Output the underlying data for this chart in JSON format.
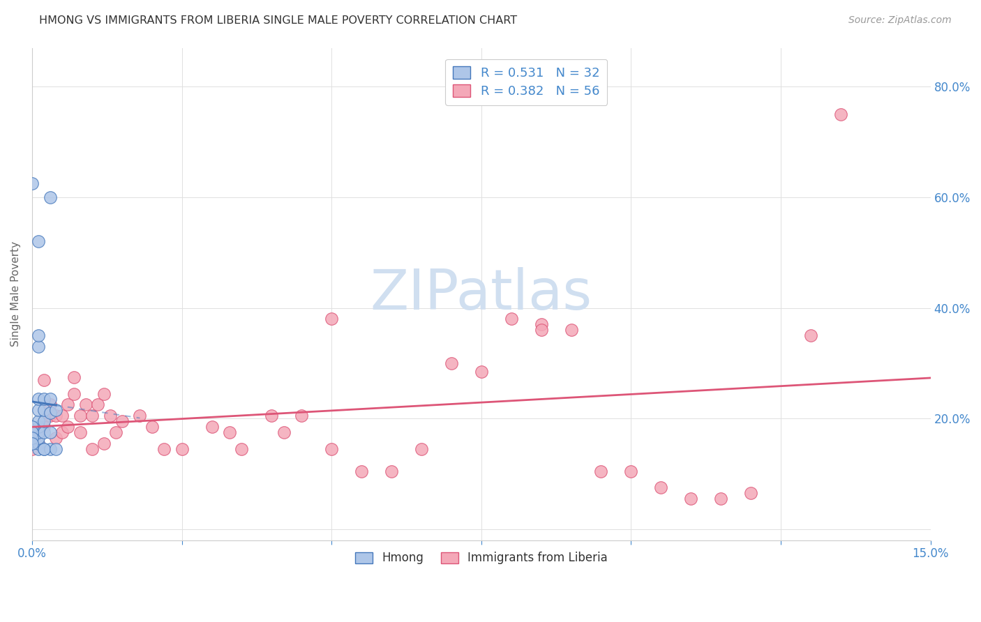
{
  "title": "HMONG VS IMMIGRANTS FROM LIBERIA SINGLE MALE POVERTY CORRELATION CHART",
  "source": "Source: ZipAtlas.com",
  "ylabel_label": "Single Male Poverty",
  "xlim": [
    0.0,
    0.15
  ],
  "ylim": [
    -0.02,
    0.87
  ],
  "legend_labels": [
    "Hmong",
    "Immigrants from Liberia"
  ],
  "hmong_R": "0.531",
  "hmong_N": "32",
  "liberia_R": "0.382",
  "liberia_N": "56",
  "hmong_color": "#aec6e8",
  "liberia_color": "#f4a8b8",
  "hmong_line_color": "#4477bb",
  "liberia_line_color": "#dd5577",
  "background_color": "#ffffff",
  "grid_color": "#e0e0e0",
  "title_color": "#333333",
  "axis_label_color": "#4488cc",
  "watermark_color": "#d0dff0",
  "hmong_x": [
    0.0,
    0.0,
    0.0,
    0.001,
    0.001,
    0.001,
    0.001,
    0.001,
    0.001,
    0.001,
    0.001,
    0.001,
    0.002,
    0.002,
    0.002,
    0.002,
    0.003,
    0.003,
    0.003,
    0.003,
    0.004,
    0.0,
    0.0,
    0.0,
    0.0,
    0.001,
    0.002,
    0.003,
    0.001,
    0.0,
    0.002,
    0.004
  ],
  "hmong_y": [
    0.155,
    0.165,
    0.175,
    0.145,
    0.155,
    0.165,
    0.175,
    0.185,
    0.195,
    0.215,
    0.235,
    0.33,
    0.175,
    0.195,
    0.215,
    0.235,
    0.175,
    0.21,
    0.235,
    0.6,
    0.215,
    0.185,
    0.175,
    0.165,
    0.155,
    0.52,
    0.145,
    0.145,
    0.35,
    0.625,
    0.145,
    0.145
  ],
  "liberia_x": [
    0.0,
    0.0,
    0.001,
    0.001,
    0.002,
    0.002,
    0.003,
    0.003,
    0.004,
    0.004,
    0.005,
    0.005,
    0.006,
    0.006,
    0.007,
    0.007,
    0.008,
    0.008,
    0.009,
    0.01,
    0.01,
    0.011,
    0.012,
    0.013,
    0.014,
    0.015,
    0.018,
    0.02,
    0.022,
    0.025,
    0.03,
    0.033,
    0.035,
    0.04,
    0.042,
    0.045,
    0.05,
    0.055,
    0.06,
    0.065,
    0.07,
    0.075,
    0.08,
    0.085,
    0.09,
    0.095,
    0.1,
    0.105,
    0.11,
    0.115,
    0.12,
    0.13,
    0.135,
    0.085,
    0.05,
    0.012
  ],
  "liberia_y": [
    0.145,
    0.165,
    0.155,
    0.175,
    0.185,
    0.27,
    0.205,
    0.225,
    0.165,
    0.205,
    0.175,
    0.205,
    0.185,
    0.225,
    0.245,
    0.275,
    0.175,
    0.205,
    0.225,
    0.145,
    0.205,
    0.225,
    0.245,
    0.205,
    0.175,
    0.195,
    0.205,
    0.185,
    0.145,
    0.145,
    0.185,
    0.175,
    0.145,
    0.205,
    0.175,
    0.205,
    0.145,
    0.105,
    0.105,
    0.145,
    0.3,
    0.285,
    0.38,
    0.37,
    0.36,
    0.105,
    0.105,
    0.075,
    0.055,
    0.055,
    0.065,
    0.35,
    0.75,
    0.36,
    0.38,
    0.155
  ]
}
